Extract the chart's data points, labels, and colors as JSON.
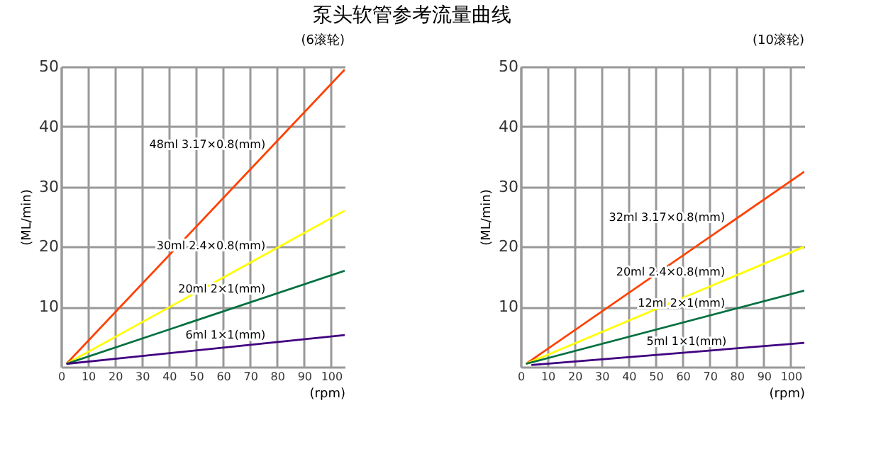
{
  "chart_data": [
    {
      "type": "line",
      "title": "泵头软管参考流量曲线",
      "subtitle": "(6滚轮)",
      "xlabel": "(rpm)",
      "ylabel": "(ML/min)",
      "xlim": [
        0,
        105
      ],
      "ylim": [
        0,
        50
      ],
      "xticks": [
        0,
        10,
        20,
        30,
        40,
        50,
        60,
        70,
        80,
        90,
        100
      ],
      "yticks": [
        10,
        20,
        30,
        40,
        50
      ],
      "grid": true,
      "series": [
        {
          "name": "48ml 3.17×0.8(mm)",
          "color": "#ff4000",
          "x": [
            2,
            105
          ],
          "values": [
            0.5,
            49.5
          ]
        },
        {
          "name": "30ml 2.4×0.8(mm)",
          "color": "#ffff00",
          "x": [
            2,
            105
          ],
          "values": [
            0.5,
            26
          ]
        },
        {
          "name": "20ml 2×1(mm)",
          "color": "#007040",
          "x": [
            2,
            105
          ],
          "values": [
            0.5,
            16
          ]
        },
        {
          "name": "6ml 1×1(mm)",
          "color": "#400080",
          "x": [
            2,
            105
          ],
          "values": [
            0.5,
            5.3
          ]
        }
      ]
    },
    {
      "type": "line",
      "subtitle": "(10滚轮)",
      "xlabel": "(rpm)",
      "ylabel": "(ML/min)",
      "xlim": [
        0,
        105
      ],
      "ylim": [
        0,
        50
      ],
      "xticks": [
        0,
        10,
        20,
        30,
        40,
        50,
        60,
        70,
        80,
        90,
        100
      ],
      "yticks": [
        10,
        20,
        30,
        40,
        50
      ],
      "grid": true,
      "series": [
        {
          "name": "32ml 3.17×0.8(mm)",
          "color": "#ff4000",
          "x": [
            2,
            105
          ],
          "values": [
            0.5,
            32.5
          ]
        },
        {
          "name": "20ml 2.4×0.8(mm)",
          "color": "#ffff00",
          "x": [
            2,
            105
          ],
          "values": [
            0.5,
            20
          ]
        },
        {
          "name": "12ml 2×1(mm)",
          "color": "#007040",
          "x": [
            2,
            105
          ],
          "values": [
            0.5,
            12.7
          ]
        },
        {
          "name": "5ml 1×1(mm)",
          "color": "#400080",
          "x": [
            4,
            105
          ],
          "values": [
            0.3,
            4
          ]
        }
      ]
    }
  ]
}
